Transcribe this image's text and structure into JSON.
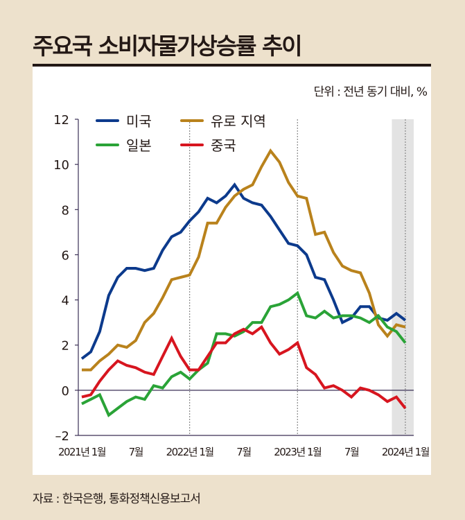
{
  "chart_data": {
    "type": "line",
    "title": "주요국 소비자물가상승률 추이",
    "unit_label": "단위 : 전년 동기 대비, %",
    "source": "자료 : 한국은행, 통화정책신용보고서",
    "x_start": "2021-01",
    "x_end": "2024-01",
    "x_tick_labels": [
      {
        "month_index": 0,
        "label": "2021년 1월"
      },
      {
        "month_index": 6,
        "label": "7월"
      },
      {
        "month_index": 12,
        "label": "2022년 1월"
      },
      {
        "month_index": 18,
        "label": "7월"
      },
      {
        "month_index": 24,
        "label": "2023년 1월"
      },
      {
        "month_index": 30,
        "label": "7월"
      },
      {
        "month_index": 36,
        "label": "2024년 1월"
      }
    ],
    "y_ticks": [
      12,
      10,
      8,
      6,
      4,
      2,
      0,
      -2
    ],
    "ylim": [
      -2,
      12
    ],
    "grid": false,
    "year_divider_months": [
      12,
      24,
      36
    ],
    "shaded_region": {
      "from_month_index": 35,
      "to_month_index": 37
    },
    "legend_position": "top-left",
    "series": [
      {
        "name": "미국",
        "color": "#0c3a8c",
        "values": [
          1.4,
          1.7,
          2.6,
          4.2,
          5.0,
          5.4,
          5.4,
          5.3,
          5.4,
          6.2,
          6.8,
          7.0,
          7.5,
          7.9,
          8.5,
          8.3,
          8.6,
          9.1,
          8.5,
          8.3,
          8.2,
          7.7,
          7.1,
          6.5,
          6.4,
          6.0,
          5.0,
          4.9,
          4.0,
          3.0,
          3.2,
          3.7,
          3.7,
          3.2,
          3.1,
          3.4,
          3.1
        ]
      },
      {
        "name": "유로 지역",
        "color": "#b9821c",
        "values": [
          0.9,
          0.9,
          1.3,
          1.6,
          2.0,
          1.9,
          2.2,
          3.0,
          3.4,
          4.1,
          4.9,
          5.0,
          5.1,
          5.9,
          7.4,
          7.4,
          8.1,
          8.6,
          8.9,
          9.1,
          9.9,
          10.6,
          10.1,
          9.2,
          8.6,
          8.5,
          6.9,
          7.0,
          6.1,
          5.5,
          5.3,
          5.2,
          4.3,
          2.9,
          2.4,
          2.9,
          2.8
        ]
      },
      {
        "name": "일본",
        "color": "#2aa337",
        "values": [
          -0.6,
          -0.4,
          -0.2,
          -1.1,
          -0.8,
          -0.5,
          -0.3,
          -0.4,
          0.2,
          0.1,
          0.6,
          0.8,
          0.5,
          0.9,
          1.2,
          2.5,
          2.5,
          2.4,
          2.6,
          3.0,
          3.0,
          3.7,
          3.8,
          4.0,
          4.3,
          3.3,
          3.2,
          3.5,
          3.2,
          3.3,
          3.3,
          3.2,
          3.0,
          3.3,
          2.8,
          2.6,
          2.1
        ]
      },
      {
        "name": "중국",
        "color": "#d7151f",
        "values": [
          -0.3,
          -0.2,
          0.4,
          0.9,
          1.3,
          1.1,
          1.0,
          0.8,
          0.7,
          1.5,
          2.3,
          1.5,
          0.9,
          0.9,
          1.5,
          2.1,
          2.1,
          2.5,
          2.7,
          2.5,
          2.8,
          2.1,
          1.6,
          1.8,
          2.1,
          1.0,
          0.7,
          0.1,
          0.2,
          0.0,
          -0.3,
          0.1,
          0.0,
          -0.2,
          -0.5,
          -0.3,
          -0.8
        ]
      }
    ]
  }
}
